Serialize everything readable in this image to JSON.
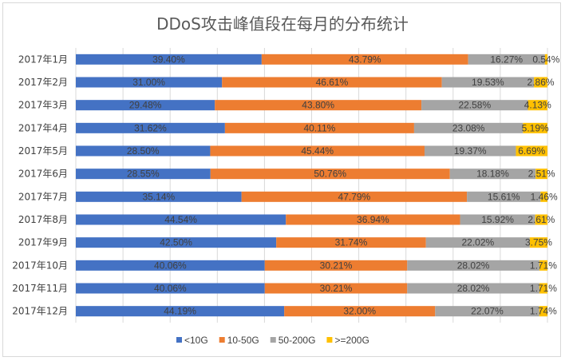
{
  "chart_data": {
    "type": "bar",
    "orientation": "horizontal",
    "stacked": "percent",
    "title": "DDoS攻击峰值段在每月的分布统计",
    "categories": [
      "2017年1月",
      "2017年2月",
      "2017年3月",
      "2017年4月",
      "2017年5月",
      "2017年6月",
      "2017年7月",
      "2017年8月",
      "2017年9月",
      "2017年10月",
      "2017年11月",
      "2017年12月"
    ],
    "series": [
      {
        "name": "<10G",
        "color": "#4472C4",
        "values": [
          39.4,
          31.0,
          29.48,
          31.62,
          28.5,
          28.55,
          35.14,
          44.54,
          42.5,
          40.06,
          40.06,
          44.19
        ],
        "labels": [
          "39.40%",
          "31.00%",
          "29.48%",
          "31.62%",
          "28.50%",
          "28.55%",
          "35.14%",
          "44.54%",
          "42.50%",
          "40.06%",
          "40.06%",
          "44.19%"
        ]
      },
      {
        "name": "10-50G",
        "color": "#ED7D31",
        "values": [
          43.79,
          46.61,
          43.8,
          40.11,
          45.44,
          50.76,
          47.79,
          36.94,
          31.74,
          30.21,
          30.21,
          32.0
        ],
        "labels": [
          "43.79%",
          "46.61%",
          "43.80%",
          "40.11%",
          "45.44%",
          "50.76%",
          "47.79%",
          "36.94%",
          "31.74%",
          "30.21%",
          "30.21%",
          "32.00%"
        ]
      },
      {
        "name": "50-200G",
        "color": "#A5A5A5",
        "values": [
          16.27,
          19.53,
          22.58,
          23.08,
          19.37,
          18.18,
          15.61,
          15.92,
          22.02,
          28.02,
          28.02,
          22.07
        ],
        "labels": [
          "16.27%",
          "19.53%",
          "22.58%",
          "23.08%",
          "19.37%",
          "18.18%",
          "15.61%",
          "15.92%",
          "22.02%",
          "28.02%",
          "28.02%",
          "22.07%"
        ]
      },
      {
        "name": ">=200G",
        "color": "#FFC000",
        "values": [
          0.54,
          2.86,
          4.13,
          5.19,
          6.69,
          2.51,
          1.46,
          2.61,
          3.75,
          1.71,
          1.71,
          1.74
        ],
        "labels": [
          "0.54%",
          "2.86%",
          "4.13%",
          "5.19%",
          "6.69%",
          "2.51%",
          "1.46%",
          "2.61%",
          "3.75%",
          "1.71%",
          "1.71%",
          "1.74%"
        ]
      }
    ],
    "xlim": [
      0,
      100
    ],
    "grid": true,
    "legend_position": "bottom"
  }
}
